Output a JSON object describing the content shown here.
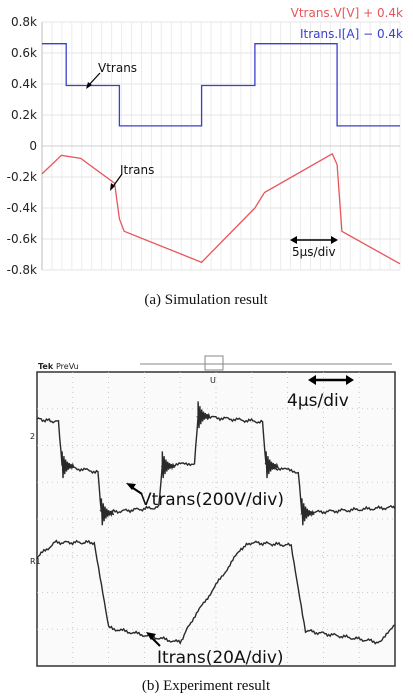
{
  "chart_data": [
    {
      "type": "line",
      "title": "",
      "caption": "(a)  Simulation  result",
      "legend": [
        {
          "name": "Vtrans.V[V] + 0.4k",
          "color": "#e8555a"
        },
        {
          "name": "Itrans.I[A] − 0.4k",
          "color": "#3a3fd0"
        }
      ],
      "legend_position": "top-right",
      "ylim": [
        -0.8,
        0.8
      ],
      "yticks": [
        0.8,
        0.6,
        0.4,
        0.2,
        0,
        -0.2,
        -0.4,
        -0.6,
        -0.8
      ],
      "ytick_labels": [
        "0.8k",
        "0.6k",
        "0.4k",
        "0.2k",
        "0",
        "-0.2k",
        "-0.4k",
        "-0.6k",
        "-0.8k"
      ],
      "xlim": [
        0,
        37
      ],
      "grid": true,
      "annotations": {
        "v": "Vtrans",
        "i": "Itrans",
        "scale": "5μs/div"
      },
      "series": [
        {
          "label": "Vtrans",
          "color": "#3a3fd0",
          "x": [
            0,
            2.5,
            2.5,
            8,
            8,
            16.5,
            16.5,
            22,
            22,
            30.5,
            30.5,
            37
          ],
          "y": [
            0.66,
            0.66,
            0.39,
            0.39,
            0.13,
            0.13,
            0.39,
            0.39,
            0.66,
            0.66,
            0.13,
            0.13
          ]
        },
        {
          "label": "Itrans",
          "color": "#e8555a",
          "x": [
            0,
            2,
            4,
            7.5,
            8,
            8.5,
            16.5,
            22,
            23,
            30,
            30.5,
            31,
            37
          ],
          "y": [
            -0.18,
            -0.06,
            -0.08,
            -0.24,
            -0.47,
            -0.55,
            -0.75,
            -0.4,
            -0.3,
            -0.05,
            -0.12,
            -0.55,
            -0.76
          ]
        }
      ]
    },
    {
      "type": "line",
      "title": "",
      "caption": "(b)  Experiment  result",
      "header": {
        "brand": "Tek",
        "mode": "PreVu"
      },
      "channel_labels": {
        "ch2": "2",
        "ch1": "R1"
      },
      "trigger_label": "U",
      "annotations": {
        "v": "Vtrans(200V/div)",
        "i": "Itrans(20A/div)",
        "scale": "4μs/div"
      },
      "series": [
        {
          "label": "Vtrans",
          "x": [
            0,
            0.06,
            0.07,
            0.17,
            0.18,
            0.34,
            0.35,
            0.44,
            0.45,
            0.63,
            0.64,
            0.73,
            0.74,
            1.0
          ],
          "y": [
            0.16,
            0.17,
            0.32,
            0.34,
            0.48,
            0.46,
            0.32,
            0.31,
            0.15,
            0.17,
            0.32,
            0.34,
            0.48,
            0.46
          ]
        },
        {
          "label": "Itrans",
          "x": [
            0,
            0.05,
            0.16,
            0.2,
            0.4,
            0.43,
            0.57,
            0.6,
            0.71,
            0.75,
            0.96,
            1.0
          ],
          "y": [
            0.63,
            0.58,
            0.58,
            0.87,
            0.92,
            0.85,
            0.6,
            0.58,
            0.59,
            0.88,
            0.92,
            0.86
          ]
        }
      ]
    }
  ]
}
